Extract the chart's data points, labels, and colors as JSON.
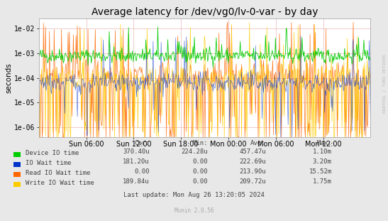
{
  "title": "Average latency for /dev/vg0/lv-0-var - by day",
  "ylabel": "seconds",
  "watermark": "RRDTOOL / TOBI OETIKER",
  "munin_version": "Munin 2.0.56",
  "background_color": "#e8e8e8",
  "plot_bg_color": "#ffffff",
  "title_fontsize": 10,
  "tick_fontsize": 7,
  "ylabel_fontsize": 7.5,
  "xtick_labels": [
    "Sun 06:00",
    "Sun 12:00",
    "Sun 18:00",
    "Mon 00:00",
    "Mon 06:00",
    "Mon 12:00"
  ],
  "ylim_log": [
    -6.4,
    -1.6
  ],
  "ytick_positions": [
    -6,
    -5,
    -4,
    -3,
    -2
  ],
  "ytick_labels": [
    "1e-06",
    "1e-05",
    "1e-04",
    "1e-03",
    "1e-02"
  ],
  "legend_entries": [
    {
      "label": "Device IO time",
      "color": "#00cc00"
    },
    {
      "label": "IO Wait time",
      "color": "#0033cc"
    },
    {
      "label": "Read IO Wait time",
      "color": "#ff6600"
    },
    {
      "label": "Write IO Wait time",
      "color": "#ffcc00"
    }
  ],
  "legend_stats": [
    {
      "cur": "370.40u",
      "min": "224.28u",
      "avg": "457.47u",
      "max": "1.10m"
    },
    {
      "cur": "181.20u",
      "min": "0.00",
      "avg": "222.69u",
      "max": "3.20m"
    },
    {
      "cur": "0.00",
      "min": "0.00",
      "avg": "213.90u",
      "max": "15.52m"
    },
    {
      "cur": "189.84u",
      "min": "0.00",
      "avg": "209.72u",
      "max": "1.75m"
    }
  ],
  "last_update": "Last update: Mon Aug 26 13:20:05 2024",
  "n_points": 500,
  "seed": 42
}
